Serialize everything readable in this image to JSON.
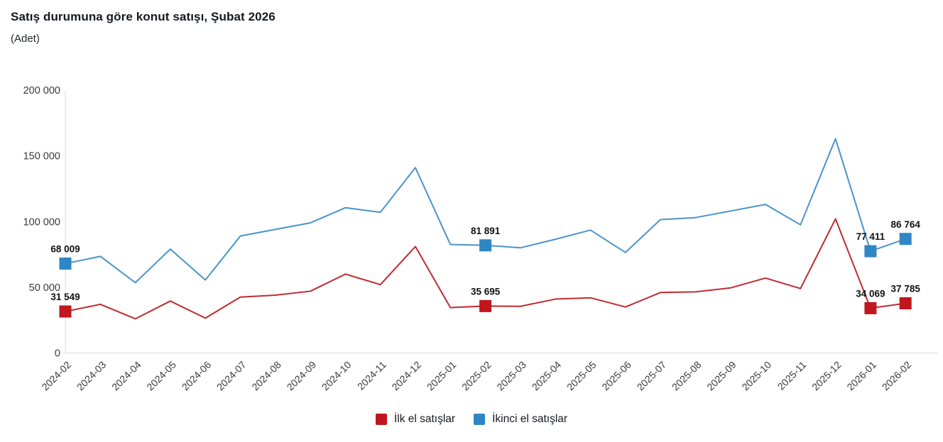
{
  "title": "Satış durumuna göre konut satışı, Şubat 2026",
  "subtitle": "(Adet)",
  "legend": [
    {
      "label": "İlk el satışlar",
      "color": "#c0161d"
    },
    {
      "label": "İkinci el satışlar",
      "color": "#2e86c4"
    }
  ],
  "chart_data": {
    "type": "line",
    "title": "Satış durumuna göre konut satışı, Şubat 2026",
    "subtitle": "(Adet)",
    "xlabel": "",
    "ylabel": "",
    "ylim": [
      0,
      200000
    ],
    "ytick_values": [
      0,
      50000,
      100000,
      150000,
      200000
    ],
    "ytick_labels": [
      "0",
      "50 000",
      "100 000",
      "150 000",
      "200 000"
    ],
    "grid": false,
    "legend_position": "bottom",
    "categories": [
      "2024-02",
      "2024-03",
      "2024-04",
      "2024-05",
      "2024-06",
      "2024-07",
      "2024-08",
      "2024-09",
      "2024-10",
      "2024-11",
      "2024-12",
      "2025-01",
      "2025-02",
      "2025-03",
      "2025-04",
      "2025-05",
      "2025-06",
      "2025-07",
      "2025-08",
      "2025-09",
      "2025-10",
      "2025-11",
      "2025-12",
      "2026-01",
      "2026-02"
    ],
    "series": [
      {
        "name": "İlk el satışlar",
        "marker_color": "#c0161d",
        "line_color": "#c02a30",
        "values": [
          31549,
          37000,
          26000,
          39500,
          26500,
          42500,
          44000,
          47000,
          60000,
          52000,
          81000,
          34500,
          35695,
          35500,
          41000,
          42000,
          35000,
          46000,
          46500,
          49500,
          57000,
          49000,
          102000,
          34069,
          37785
        ],
        "value_labels": [
          "31 549",
          null,
          null,
          null,
          null,
          null,
          null,
          null,
          null,
          null,
          null,
          null,
          "35 695",
          null,
          null,
          null,
          null,
          null,
          null,
          null,
          null,
          null,
          null,
          "34 069",
          "37 785"
        ]
      },
      {
        "name": "İkinci el satışlar",
        "marker_color": "#2e86c4",
        "line_color": "#4a94cc",
        "values": [
          68009,
          73500,
          53500,
          79000,
          55500,
          89000,
          94000,
          99000,
          110500,
          107000,
          141000,
          82500,
          81891,
          80000,
          86500,
          93500,
          76500,
          101500,
          103000,
          108000,
          113000,
          97500,
          163000,
          77411,
          86764
        ],
        "value_labels": [
          "68 009",
          null,
          null,
          null,
          null,
          null,
          null,
          null,
          null,
          null,
          null,
          null,
          "81 891",
          null,
          null,
          null,
          null,
          null,
          null,
          null,
          null,
          null,
          null,
          "77 411",
          "86 764"
        ]
      }
    ]
  }
}
